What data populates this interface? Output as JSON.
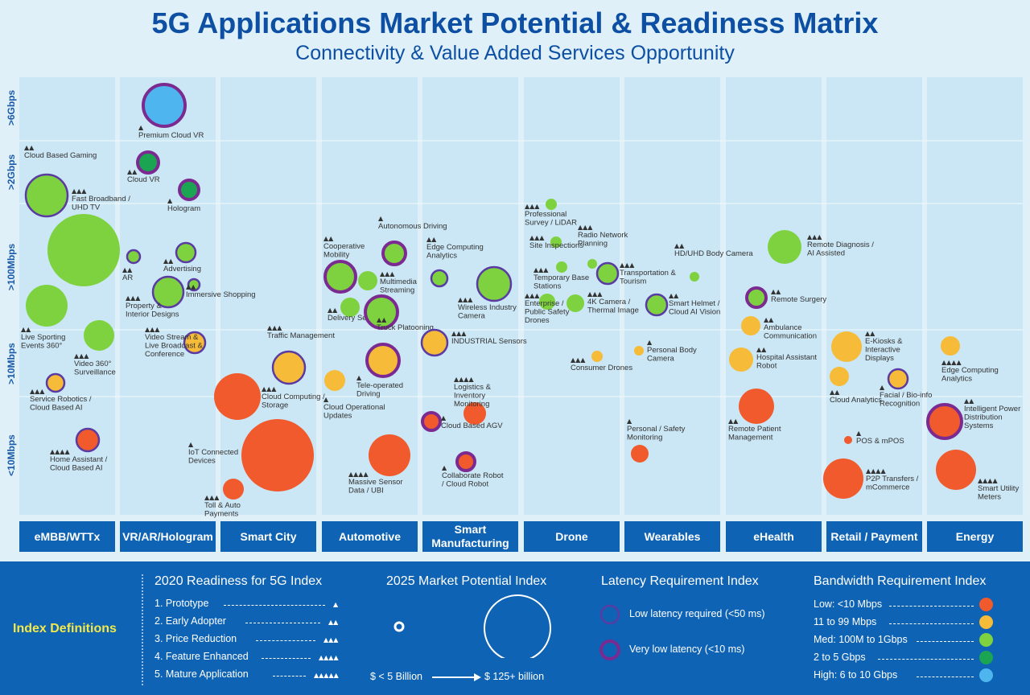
{
  "title": "5G Applications Market Potential & Readiness Matrix",
  "subtitle": "Connectivity & Value Added Services Opportunity",
  "colors": {
    "low": "#f05a2c",
    "mid_low": "#f6bb38",
    "med": "#7ed23f",
    "two_to_five": "#1ba552",
    "high": "#4fb5ee",
    "low_latency_ring": "#5a3ba3",
    "very_low_latency_ring": "#7b2a91"
  },
  "chart_data": {
    "type": "scatter",
    "title": "5G Applications Market Potential & Readiness Matrix",
    "subtitle": "Connectivity & Value Added Services Opportunity",
    "y_levels": [
      ">6Gbps",
      ">2Gbps",
      ">100Mbps",
      ">10Mbps",
      "<10Mbps"
    ],
    "categories": [
      "eMBB/WTTx",
      "VR/AR/Hologram",
      "Smart City",
      "Automotive",
      "Smart Manufacturing",
      "Drone",
      "Wearables",
      "eHealth",
      "Retail / Payment",
      "Energy"
    ],
    "points": [
      {
        "category": "eMBB/WTTx",
        "bandwidth": ">2Gbps",
        "label": "Cloud Based Gaming",
        "readiness": 2,
        "market_potential": "medium-large",
        "latency": "low"
      },
      {
        "category": "eMBB/WTTx",
        "bandwidth": ">100Mbps",
        "label": "Fast Broadband / UHD TV",
        "readiness": 3,
        "market_potential": "$ 125+ billion",
        "latency": "none"
      },
      {
        "category": "eMBB/WTTx",
        "bandwidth": ">100Mbps",
        "label": "Live Sporting Events 360°",
        "readiness": 2,
        "market_potential": "medium",
        "latency": "none"
      },
      {
        "category": "eMBB/WTTx",
        "bandwidth": ">100Mbps",
        "label": "Video 360° Surveillance",
        "readiness": 3,
        "market_potential": "medium",
        "latency": "none"
      },
      {
        "category": "eMBB/WTTx",
        "bandwidth": ">10Mbps",
        "label": "Service Robotics / Cloud Based AI",
        "readiness": 3,
        "market_potential": "small",
        "latency": "low"
      },
      {
        "category": "eMBB/WTTx",
        "bandwidth": "<10Mbps",
        "label": "Home Assistant / Cloud Based AI",
        "readiness": 4,
        "market_potential": "small",
        "latency": "low"
      },
      {
        "category": "VR/AR/Hologram",
        "bandwidth": ">6Gbps",
        "label": "Premium Cloud VR",
        "readiness": 1,
        "market_potential": "medium",
        "latency": "very-low"
      },
      {
        "category": "VR/AR/Hologram",
        "bandwidth": ">2Gbps",
        "label": "Cloud VR",
        "readiness": 2,
        "market_potential": "small",
        "latency": "very-low"
      },
      {
        "category": "VR/AR/Hologram",
        "bandwidth": ">2Gbps",
        "label": "Hologram",
        "readiness": 1,
        "market_potential": "small",
        "latency": "very-low"
      },
      {
        "category": "VR/AR/Hologram",
        "bandwidth": ">100Mbps",
        "label": "AR",
        "readiness": 2,
        "market_potential": "small",
        "latency": "low"
      },
      {
        "category": "VR/AR/Hologram",
        "bandwidth": ">100Mbps",
        "label": "Advertising",
        "readiness": 2,
        "market_potential": "small",
        "latency": "low"
      },
      {
        "category": "VR/AR/Hologram",
        "bandwidth": ">100Mbps",
        "label": "Immersive Shopping",
        "readiness": 2,
        "market_potential": "small",
        "latency": "low"
      },
      {
        "category": "VR/AR/Hologram",
        "bandwidth": ">100Mbps",
        "label": "Property & Interior Designs",
        "readiness": 3,
        "market_potential": "small-medium",
        "latency": "low"
      },
      {
        "category": "VR/AR/Hologram",
        "bandwidth": ">10Mbps",
        "label": "Video Stream & Live Broadcast & Conference",
        "readiness": 3,
        "market_potential": "small",
        "latency": "low"
      },
      {
        "category": "Smart City",
        "bandwidth": ">10Mbps",
        "label": "Traffic Management",
        "readiness": 3,
        "market_potential": "small-medium",
        "latency": "low"
      },
      {
        "category": "Smart City",
        "bandwidth": "<10Mbps",
        "label": "Cloud Computing / Storage",
        "readiness": 3,
        "market_potential": "medium",
        "latency": "none"
      },
      {
        "category": "Smart City",
        "bandwidth": "<10Mbps",
        "label": "IoT Connected Devices",
        "readiness": 1,
        "market_potential": "large",
        "latency": "none"
      },
      {
        "category": "Smart City",
        "bandwidth": "<10Mbps",
        "label": "Toll & Auto Payments",
        "readiness": 3,
        "market_potential": "small",
        "latency": "none"
      },
      {
        "category": "Automotive",
        "bandwidth": ">100Mbps",
        "label": "Autonomous Driving",
        "readiness": 1,
        "market_potential": "small",
        "latency": "very-low"
      },
      {
        "category": "Automotive",
        "bandwidth": ">100Mbps",
        "label": "Cooperative Mobility",
        "readiness": 2,
        "market_potential": "small-medium",
        "latency": "very-low"
      },
      {
        "category": "Automotive",
        "bandwidth": ">100Mbps",
        "label": "Multimedia Streaming",
        "readiness": 3,
        "market_potential": "small",
        "latency": "none"
      },
      {
        "category": "Automotive",
        "bandwidth": ">100Mbps",
        "label": "Delivery Service",
        "readiness": 2,
        "market_potential": "small",
        "latency": "none"
      },
      {
        "category": "Automotive",
        "bandwidth": ">100Mbps",
        "label": "Truck Platooning",
        "readiness": 2,
        "market_potential": "small-medium",
        "latency": "very-low"
      },
      {
        "category": "Automotive",
        "bandwidth": ">10Mbps",
        "label": "Tele-operated Driving",
        "readiness": 1,
        "market_potential": "small-medium",
        "latency": "very-low"
      },
      {
        "category": "Automotive",
        "bandwidth": ">10Mbps",
        "label": "Cloud Operational Updates",
        "readiness": 1,
        "market_potential": "small",
        "latency": "none"
      },
      {
        "category": "Automotive",
        "bandwidth": "<10Mbps",
        "label": "Massive Sensor Data / UBI",
        "readiness": 4,
        "market_potential": "medium",
        "latency": "none"
      },
      {
        "category": "Smart Manufacturing",
        "bandwidth": ">100Mbps",
        "label": "Edge Computing Analytics",
        "readiness": 2,
        "market_potential": "small",
        "latency": "low"
      },
      {
        "category": "Smart Manufacturing",
        "bandwidth": ">100Mbps",
        "label": "Wireless Industry Camera",
        "readiness": 3,
        "market_potential": "small-medium",
        "latency": "low"
      },
      {
        "category": "Smart Manufacturing",
        "bandwidth": ">10Mbps",
        "label": "INDUSTRIAL Sensors",
        "readiness": 3,
        "market_potential": "small-medium",
        "latency": "low"
      },
      {
        "category": "Smart Manufacturing",
        "bandwidth": "<10Mbps",
        "label": "Logistics & Inventory Monitoring",
        "readiness": 4,
        "market_potential": "small",
        "latency": "none"
      },
      {
        "category": "Smart Manufacturing",
        "bandwidth": "<10Mbps",
        "label": "Cloud Based AGV",
        "readiness": 1,
        "market_potential": "small",
        "latency": "very-low"
      },
      {
        "category": "Smart Manufacturing",
        "bandwidth": "<10Mbps",
        "label": "Collaborate Robot / Cloud Robot",
        "readiness": 1,
        "market_potential": "small",
        "latency": "very-low"
      },
      {
        "category": "Drone",
        "bandwidth": ">100Mbps",
        "label": "Professional Survey / LiDAR",
        "readiness": 3,
        "market_potential": "small",
        "latency": "none"
      },
      {
        "category": "Drone",
        "bandwidth": ">100Mbps",
        "label": "Site Inspections",
        "readiness": 3,
        "market_potential": "small",
        "latency": "none"
      },
      {
        "category": "Drone",
        "bandwidth": ">100Mbps",
        "label": "Radio Network Planning",
        "readiness": 3,
        "market_potential": "small",
        "latency": "none"
      },
      {
        "category": "Drone",
        "bandwidth": ">100Mbps",
        "label": "Temporary Base Stations",
        "readiness": 3,
        "market_potential": "small",
        "latency": "none"
      },
      {
        "category": "Drone",
        "bandwidth": ">100Mbps",
        "label": "Transportation & Tourism",
        "readiness": 3,
        "market_potential": "small",
        "latency": "low"
      },
      {
        "category": "Drone",
        "bandwidth": ">100Mbps",
        "label": "Enterprise / Public Safety Drones",
        "readiness": 3,
        "market_potential": "small",
        "latency": "none"
      },
      {
        "category": "Drone",
        "bandwidth": ">100Mbps",
        "label": "4K Camera / Thermal Image",
        "readiness": 3,
        "market_potential": "small",
        "latency": "none"
      },
      {
        "category": "Drone",
        "bandwidth": ">10Mbps",
        "label": "Consumer Drones",
        "readiness": 3,
        "market_potential": "small",
        "latency": "none"
      },
      {
        "category": "Wearables",
        "bandwidth": ">100Mbps",
        "label": "HD/UHD Body Camera",
        "readiness": 2,
        "market_potential": "small",
        "latency": "none"
      },
      {
        "category": "Wearables",
        "bandwidth": ">100Mbps",
        "label": "Smart Helmet / Cloud AI Vision",
        "readiness": 2,
        "market_potential": "small",
        "latency": "low"
      },
      {
        "category": "Wearables",
        "bandwidth": ">10Mbps",
        "label": "Personal Body Camera",
        "readiness": 1,
        "market_potential": "small",
        "latency": "none"
      },
      {
        "category": "Wearables",
        "bandwidth": "<10Mbps",
        "label": "Personal / Safety Monitoring",
        "readiness": 1,
        "market_potential": "small",
        "latency": "none"
      },
      {
        "category": "eHealth",
        "bandwidth": ">100Mbps",
        "label": "Remote Diagnosis / AI Assisted",
        "readiness": 3,
        "market_potential": "small-medium",
        "latency": "none"
      },
      {
        "category": "eHealth",
        "bandwidth": ">100Mbps",
        "label": "Remote Surgery",
        "readiness": 2,
        "market_potential": "small",
        "latency": "very-low"
      },
      {
        "category": "eHealth",
        "bandwidth": ">10Mbps",
        "label": "Ambulance Communication",
        "readiness": 2,
        "market_potential": "small",
        "latency": "none"
      },
      {
        "category": "eHealth",
        "bandwidth": ">10Mbps",
        "label": "Hospital Assistant Robot",
        "readiness": 2,
        "market_potential": "small",
        "latency": "none"
      },
      {
        "category": "eHealth",
        "bandwidth": "<10Mbps",
        "label": "Remote Patient Management",
        "readiness": 2,
        "market_potential": "small-medium",
        "latency": "none"
      },
      {
        "category": "Retail / Payment",
        "bandwidth": ">10Mbps",
        "label": "E-Kiosks & Interactive Displays",
        "readiness": 2,
        "market_potential": "small",
        "latency": "none"
      },
      {
        "category": "Retail / Payment",
        "bandwidth": ">10Mbps",
        "label": "Cloud Analytics",
        "readiness": 2,
        "market_potential": "small",
        "latency": "none"
      },
      {
        "category": "Retail / Payment",
        "bandwidth": ">10Mbps",
        "label": "Facial / Bio-info Recognition",
        "readiness": 1,
        "market_potential": "small",
        "latency": "low"
      },
      {
        "category": "Retail / Payment",
        "bandwidth": "<10Mbps",
        "label": "POS & mPOS",
        "readiness": 1,
        "market_potential": "$ < 5 Billion",
        "latency": "none"
      },
      {
        "category": "Retail / Payment",
        "bandwidth": "<10Mbps",
        "label": "P2P Transfers / mCommerce",
        "readiness": 4,
        "market_potential": "small-medium",
        "latency": "none"
      },
      {
        "category": "Energy",
        "bandwidth": ">10Mbps",
        "label": "Edge Computing Analytics",
        "readiness": 4,
        "market_potential": "small",
        "latency": "none"
      },
      {
        "category": "Energy",
        "bandwidth": "<10Mbps",
        "label": "Intelligent Power Distribution Systems",
        "readiness": 2,
        "market_potential": "small-medium",
        "latency": "very-low"
      },
      {
        "category": "Energy",
        "bandwidth": "<10Mbps",
        "label": "Smart Utility Meters",
        "readiness": 4,
        "market_potential": "small-medium",
        "latency": "none"
      }
    ]
  },
  "legend": {
    "index_definitions_label": "Index Definitions",
    "readiness": {
      "heading": "2020 Readiness for 5G Index",
      "items": [
        "1. Prototype",
        "2. Early Adopter",
        "3. Price Reduction",
        "4. Feature Enhanced",
        "5. Mature Application"
      ]
    },
    "market": {
      "heading": "2025 Market Potential Index",
      "min_label": "$ < 5 Billion",
      "max_label": "$ 125+ billion"
    },
    "latency": {
      "heading": "Latency Requirement Index",
      "items": [
        "Low latency required (<50 ms)",
        "Very low latency (<10 ms)"
      ]
    },
    "bandwidth": {
      "heading": "Bandwidth Requirement Index",
      "items": [
        "Low: <10 Mbps",
        "11 to 99 Mbps",
        "Med: 100M to 1Gbps",
        "2 to 5 Gbps",
        "High: 6 to 10 Gbps"
      ]
    }
  }
}
